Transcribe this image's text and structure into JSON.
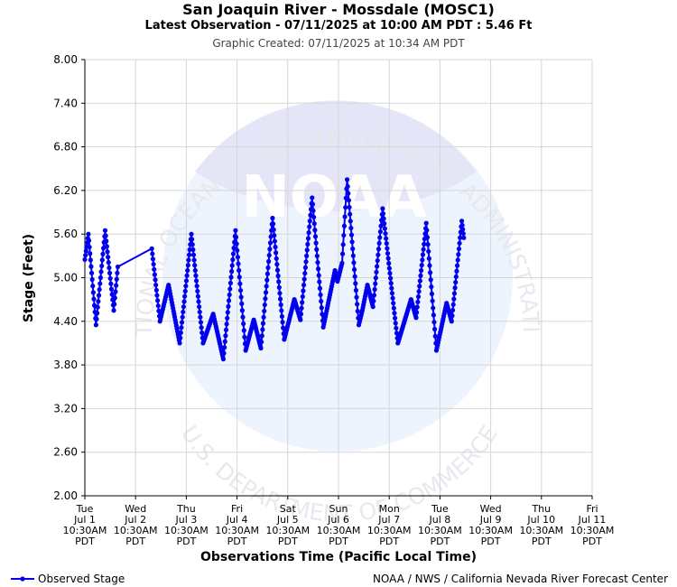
{
  "header": {
    "title": "San Joaquin River - Mossdale (MOSC1)",
    "subtitle": "Latest Observation - 07/11/2025 at 10:00 AM PDT : 5.46 Ft",
    "created": "Graphic Created: 07/11/2025 at 10:34 AM PDT"
  },
  "watermark": {
    "logo_text": "NOAA",
    "top_text": "NATIONAL OCEANIC AND ATMOSPHERIC ADMINISTRATION",
    "bottom_text": "U.S. DEPARTMENT OF COMMERCE",
    "color": "#e4e6f7"
  },
  "footer": {
    "legend_label": "Observed Stage",
    "credit": "NOAA / NWS / California Nevada River Forecast Center"
  },
  "chart_data": {
    "type": "line",
    "xlabel": "Observations Time (Pacific Local Time)",
    "ylabel": "Stage (Feet)",
    "ylim": [
      2.0,
      8.0
    ],
    "xlim": [
      0,
      10
    ],
    "yticks": [
      "2.00",
      "2.60",
      "3.20",
      "3.80",
      "4.40",
      "5.00",
      "5.60",
      "6.20",
      "6.80",
      "7.40",
      "8.00"
    ],
    "xticks": [
      {
        "day": "Tue",
        "date": "Jul 1",
        "time": "10:30AM",
        "tz": "PDT"
      },
      {
        "day": "Wed",
        "date": "Jul 2",
        "time": "10:30AM",
        "tz": "PDT"
      },
      {
        "day": "Thu",
        "date": "Jul 3",
        "time": "10:30AM",
        "tz": "PDT"
      },
      {
        "day": "Fri",
        "date": "Jul 4",
        "time": "10:30AM",
        "tz": "PDT"
      },
      {
        "day": "Sat",
        "date": "Jul 5",
        "time": "10:30AM",
        "tz": "PDT"
      },
      {
        "day": "Sun",
        "date": "Jul 6",
        "time": "10:30AM",
        "tz": "PDT"
      },
      {
        "day": "Mon",
        "date": "Jul 7",
        "time": "10:30AM",
        "tz": "PDT"
      },
      {
        "day": "Tue",
        "date": "Jul 8",
        "time": "10:30AM",
        "tz": "PDT"
      },
      {
        "day": "Wed",
        "date": "Jul 9",
        "time": "10:30AM",
        "tz": "PDT"
      },
      {
        "day": "Thu",
        "date": "Jul 10",
        "time": "10:30AM",
        "tz": "PDT"
      },
      {
        "day": "Fri",
        "date": "Jul 11",
        "time": "10:30AM",
        "tz": "PDT"
      }
    ],
    "grid": true,
    "legend": "bottom-left",
    "series": [
      {
        "name": "Observed Stage",
        "color": "#0000ee",
        "points": [
          [
            0.0,
            5.25
          ],
          [
            0.07,
            5.6
          ],
          [
            0.22,
            4.35
          ],
          [
            0.4,
            5.65
          ],
          [
            0.57,
            4.55
          ],
          [
            0.65,
            5.15
          ],
          [
            1.32,
            5.4
          ],
          [
            1.48,
            4.4
          ],
          [
            1.65,
            4.9
          ],
          [
            1.87,
            4.1
          ],
          [
            2.1,
            5.6
          ],
          [
            2.33,
            4.1
          ],
          [
            2.53,
            4.5
          ],
          [
            2.73,
            3.88
          ],
          [
            2.97,
            5.65
          ],
          [
            3.17,
            4.0
          ],
          [
            3.33,
            4.42
          ],
          [
            3.47,
            4.03
          ],
          [
            3.7,
            5.82
          ],
          [
            3.93,
            4.15
          ],
          [
            4.13,
            4.7
          ],
          [
            4.25,
            4.42
          ],
          [
            4.48,
            6.1
          ],
          [
            4.7,
            4.32
          ],
          [
            4.93,
            5.1
          ],
          [
            4.98,
            4.95
          ],
          [
            5.07,
            5.2
          ],
          [
            5.17,
            6.35
          ],
          [
            5.4,
            4.35
          ],
          [
            5.47,
            4.55
          ],
          [
            5.57,
            4.9
          ],
          [
            5.68,
            4.6
          ],
          [
            5.87,
            5.95
          ],
          [
            6.08,
            4.65
          ],
          [
            6.17,
            4.1
          ],
          [
            6.43,
            4.7
          ],
          [
            6.53,
            4.45
          ],
          [
            6.73,
            5.75
          ],
          [
            6.93,
            4.0
          ],
          [
            7.13,
            4.65
          ],
          [
            7.23,
            4.4
          ],
          [
            7.43,
            5.78
          ],
          [
            7.47,
            5.55
          ]
        ]
      }
    ]
  }
}
